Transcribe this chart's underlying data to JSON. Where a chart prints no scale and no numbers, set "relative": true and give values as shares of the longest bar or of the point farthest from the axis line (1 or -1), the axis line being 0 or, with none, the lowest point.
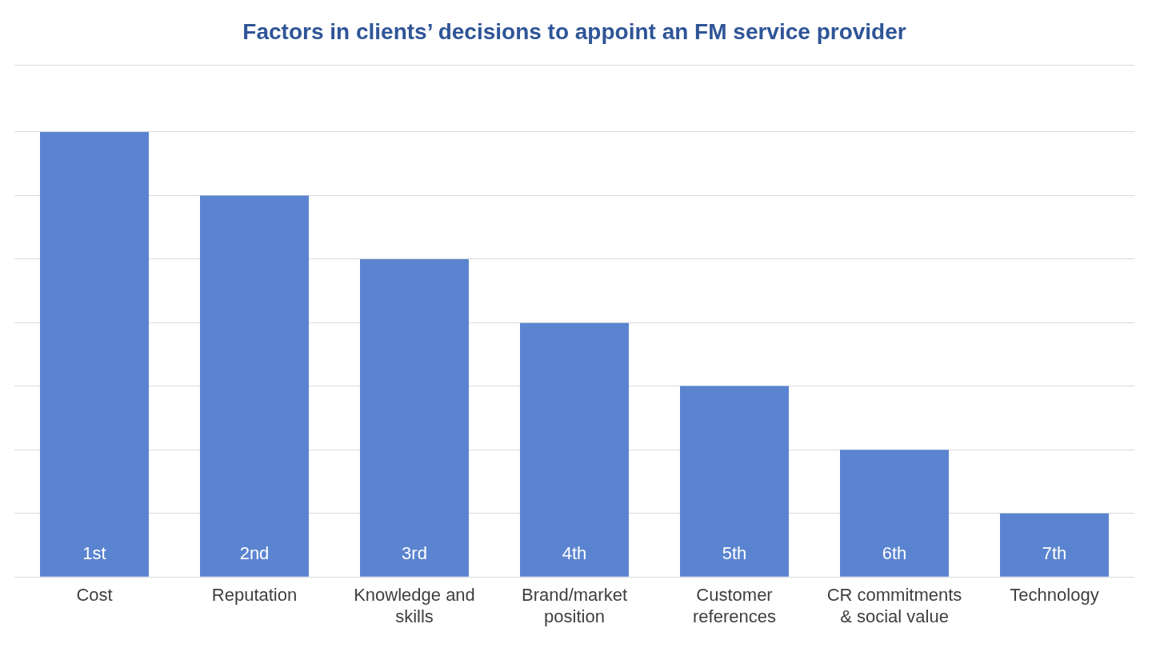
{
  "chart_data": {
    "type": "bar",
    "title": "Factors in clients’ decisions to appoint an FM service provider",
    "relative": true,
    "grid": "y",
    "categories": [
      "Cost",
      "Reputation",
      "Knowledge and skills",
      "Brand/market position",
      "Customer references",
      "CR commitments & social value",
      "Technology"
    ],
    "values": [
      1,
      0.857,
      0.714,
      0.571,
      0.429,
      0.286,
      0.143
    ],
    "annotations": [
      "1st",
      "2nd",
      "3rd",
      "4th",
      "5th",
      "6th",
      "7th"
    ],
    "color": "#5b84d0"
  }
}
